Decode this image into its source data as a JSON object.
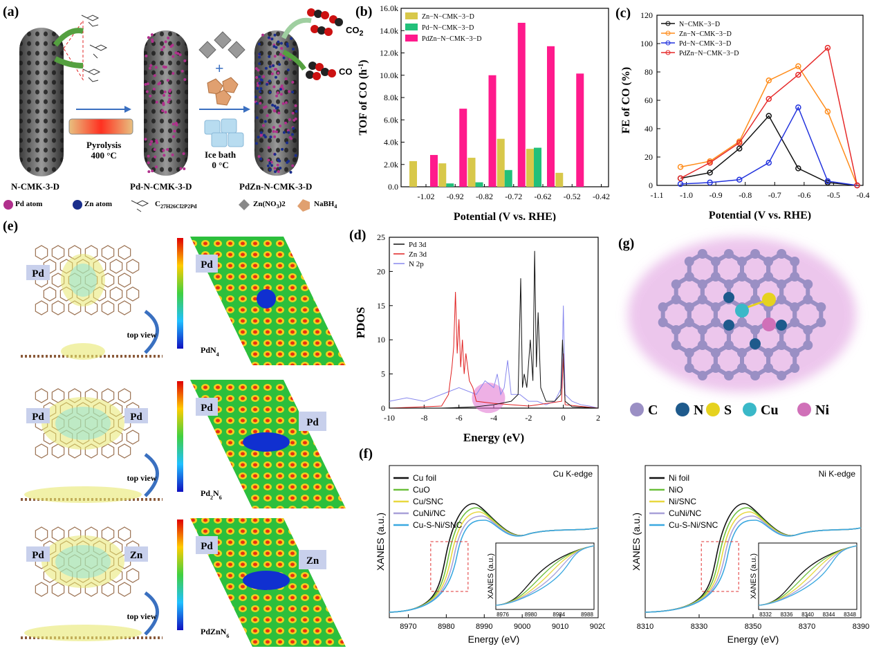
{
  "panel_labels": {
    "a": "(a)",
    "b": "(b)",
    "c": "(c)",
    "d": "(d)",
    "e": "(e)",
    "f": "(f)",
    "g": "(g)"
  },
  "panel_a": {
    "stage1": "N-CMK-3-D",
    "stage2": "Pd-N-CMK-3-D",
    "stage3": "PdZn-N-CMK-3-D",
    "step1_line1": "Pyrolysis",
    "step1_line2": "400 °C",
    "step2_line1": "Ice bath",
    "step2_line2": "0 °C",
    "co2": "CO",
    "co2_sub": "2",
    "co": "CO",
    "legend": {
      "pd_atom": "Pd atom",
      "zn_atom": "Zn atom",
      "ligand": "C",
      "ligand_formula": "27H26Cl2P2Pd",
      "zn_nitrate": "Zn(NO",
      "zn_nitrate_sub": "3",
      "zn_nitrate_end": ")2",
      "nabh4": "NaBH",
      "nabh4_sub": "4"
    },
    "colors": {
      "pd": "#b0308c",
      "zn": "#1a2e8c",
      "rod": "#555555"
    }
  },
  "panel_e": {
    "row1": {
      "left_a": "Pd",
      "view": "top view",
      "map_a": "Pd",
      "map_label": "PdN",
      "map_sub": "4"
    },
    "row2": {
      "left_a": "Pd",
      "left_b": "Pd",
      "view": "top view",
      "map_a": "Pd",
      "map_b": "Pd",
      "map_label": "Pd",
      "map_sub1": "2",
      "map_mid": "N",
      "map_sub2": "6"
    },
    "row3": {
      "left_a": "Pd",
      "left_b": "Zn",
      "view": "top view",
      "map_a": "Pd",
      "map_b": "Zn",
      "map_label": "PdZnN",
      "map_sub": "6"
    }
  },
  "panel_g": {
    "legend": [
      "C",
      "N",
      "S",
      "Cu",
      "Ni"
    ],
    "colors": {
      "C": "#9a8fc4",
      "N": "#1e5a8c",
      "S": "#e6d21e",
      "Cu": "#3ab8c8",
      "Ni": "#d070b8"
    }
  },
  "chart_data": [
    {
      "id": "b",
      "type": "bar",
      "ylabel": "TOF of CO (h",
      "ylabel_sup": "-1",
      "ylabel_end": ")",
      "xlabel": "Potential (V vs. RHE)",
      "categories": [
        "-1.02",
        "-0.92",
        "-0.82",
        "-0.72",
        "-0.62",
        "-0.52",
        "-0.42"
      ],
      "yticks": [
        "0.0",
        "2.0k",
        "4.0k",
        "6.0k",
        "8.0k",
        "10.0k",
        "12.0k",
        "14.0k",
        "16.0k"
      ],
      "ylim": [
        0,
        16000
      ],
      "series": [
        {
          "name": "Zn−N−CMK−3−D",
          "color": "#d8c84a",
          "values": [
            2300,
            2100,
            2600,
            4300,
            3400,
            1250,
            0
          ]
        },
        {
          "name": "Pd−N−CMK−3−D",
          "color": "#22c07a",
          "values": [
            0,
            300,
            400,
            1500,
            3500,
            0,
            0
          ]
        },
        {
          "name": "PdZn−N−CMK−3−D",
          "color": "#ff1a8c",
          "values": [
            2850,
            7000,
            10000,
            14700,
            12600,
            10150,
            0
          ]
        }
      ]
    },
    {
      "id": "c",
      "type": "line",
      "ylabel": "FE of CO (%)",
      "xlabel": "Potential (V vs. RHE)",
      "xticks": [
        "-1.1",
        "-1.0",
        "-0.9",
        "-0.8",
        "-0.7",
        "-0.6",
        "-0.5",
        "-0.4"
      ],
      "yticks": [
        "0",
        "20",
        "40",
        "60",
        "80",
        "100",
        "120"
      ],
      "xlim": [
        -1.1,
        -0.4
      ],
      "ylim": [
        0,
        120
      ],
      "x": [
        -1.02,
        -0.92,
        -0.82,
        -0.72,
        -0.62,
        -0.52,
        -0.42
      ],
      "series": [
        {
          "name": "N−CMK−3−D",
          "color": "#111111",
          "values": [
            5,
            9,
            26,
            49,
            12,
            2,
            0
          ]
        },
        {
          "name": "Zn−N−CMK−3−D",
          "color": "#ff8c1a",
          "values": [
            13,
            17,
            31,
            74,
            84,
            52,
            0
          ]
        },
        {
          "name": "Pd−N−CMK−3−D",
          "color": "#2233dd",
          "values": [
            1,
            2,
            4,
            16,
            55,
            3,
            0
          ]
        },
        {
          "name": "PdZn−N−CMK−3−D",
          "color": "#e62a2a",
          "values": [
            5,
            16,
            30,
            61,
            78,
            97,
            0
          ]
        }
      ]
    },
    {
      "id": "d",
      "type": "line",
      "ylabel": "PDOS",
      "xlabel": "Energy (eV)",
      "xticks": [
        "-10",
        "-8",
        "-6",
        "-4",
        "-2",
        "0",
        "2"
      ],
      "yticks": [
        "0",
        "5",
        "10",
        "15",
        "20",
        "25"
      ],
      "xlim": [
        -10,
        2
      ],
      "ylim": [
        0,
        25
      ],
      "series": [
        {
          "name": "Pd 3d",
          "color": "#111111",
          "x": [
            -10,
            -7,
            -5,
            -4,
            -3,
            -2.6,
            -2.45,
            -2.35,
            -2.25,
            -2.1,
            -1.9,
            -1.75,
            -1.65,
            -1.55,
            -1.45,
            -1.3,
            -1,
            -0.5,
            -0.15,
            -0.05,
            0.1,
            0.5,
            2
          ],
          "values": [
            0,
            0,
            0.2,
            0.5,
            1,
            2,
            19,
            3,
            5,
            3,
            10,
            4,
            23,
            6,
            14,
            3,
            1,
            1,
            2,
            10,
            1,
            0.2,
            0
          ]
        },
        {
          "name": "Zn 3d",
          "color": "#e02020",
          "x": [
            -10,
            -7,
            -6.6,
            -6.4,
            -6.3,
            -6.2,
            -6.1,
            -6.0,
            -5.9,
            -5.8,
            -5.7,
            -5.6,
            -5.4,
            -5.2,
            -5,
            -4,
            -2,
            -0.1,
            0,
            0.1,
            2
          ],
          "values": [
            0,
            0.3,
            2,
            6,
            9,
            17,
            8,
            13,
            6,
            10,
            5,
            8,
            4,
            3,
            1,
            0.7,
            0.3,
            1,
            8,
            0.5,
            0
          ]
        },
        {
          "name": "N 2p",
          "color": "#8888ee",
          "x": [
            -10,
            -9,
            -8,
            -7,
            -6,
            -5,
            -4.5,
            -4,
            -3.8,
            -3.6,
            -3.4,
            -3.2,
            -3,
            -2.5,
            -2,
            -1.5,
            -1,
            -0.5,
            -0.1,
            0,
            0.1,
            0.5,
            1,
            1.5,
            2
          ],
          "values": [
            1,
            1.5,
            1,
            2,
            3,
            2,
            4,
            3,
            5,
            2,
            3,
            7,
            2,
            2,
            1,
            1,
            0.5,
            1,
            3,
            15,
            2,
            1,
            0.5,
            0.3,
            0
          ]
        }
      ]
    },
    {
      "id": "f_cu",
      "type": "line",
      "ylabel": "XANES (a.u.)",
      "xlabel": "Energy (eV)",
      "title": "Cu K-edge",
      "xticks": [
        "8970",
        "8980",
        "8990",
        "9000",
        "9010",
        "9020"
      ],
      "xlim": [
        8965,
        9020
      ],
      "inset_xticks": [
        "8976",
        "8980",
        "8984",
        "8988"
      ],
      "inset_ylabel": "XANES (a.u.)",
      "series": [
        {
          "name": "Cu foil",
          "color": "#111111"
        },
        {
          "name": "CuO",
          "color": "#6bbf3a"
        },
        {
          "name": "Cu/SNC",
          "color": "#e8d840"
        },
        {
          "name": "CuNi/NC",
          "color": "#a8a0d8"
        },
        {
          "name": "Cu-S-Ni/SNC",
          "color": "#3aa8e0"
        }
      ]
    },
    {
      "id": "f_ni",
      "type": "line",
      "ylabel": "XANES (a.u.)",
      "xlabel": "Energy (eV)",
      "title": "Ni K-edge",
      "xticks": [
        "8310",
        "8330",
        "8350",
        "8370",
        "8390"
      ],
      "xlim": [
        8310,
        8390
      ],
      "inset_xticks": [
        "8332",
        "8336",
        "8340",
        "8344",
        "8348"
      ],
      "inset_ylabel": "XANES (a.u.)",
      "series": [
        {
          "name": "Ni foil",
          "color": "#111111"
        },
        {
          "name": "NiO",
          "color": "#6bbf3a"
        },
        {
          "name": "Ni/SNC",
          "color": "#e8d840"
        },
        {
          "name": "CuNi/NC",
          "color": "#a8a0d8"
        },
        {
          "name": "Cu-S-Ni/SNC",
          "color": "#3aa8e0"
        }
      ]
    }
  ]
}
